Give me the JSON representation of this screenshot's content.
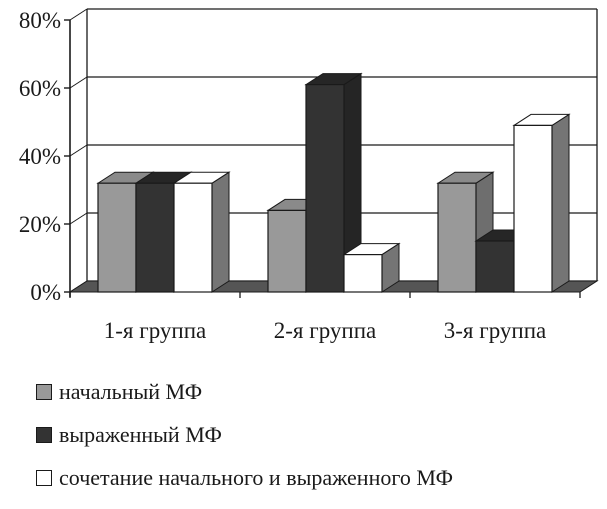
{
  "chart_data": {
    "type": "bar",
    "style": "3d-clustered",
    "categories": [
      "1-я группа",
      "2-я группа",
      "3-я группа"
    ],
    "series": [
      {
        "name": "начальный МФ",
        "color": "#999999",
        "values": [
          32,
          24,
          32
        ]
      },
      {
        "name": "выраженный МФ",
        "color": "#333333",
        "values": [
          32,
          61,
          15
        ]
      },
      {
        "name": "сочетание начального и выраженного МФ",
        "color": "#ffffff",
        "values": [
          32,
          11,
          49
        ]
      }
    ],
    "yticks": [
      "0%",
      "20%",
      "40%",
      "60%",
      "80%"
    ],
    "ylim": [
      0,
      80
    ],
    "grid": true,
    "legend_position": "bottom"
  }
}
